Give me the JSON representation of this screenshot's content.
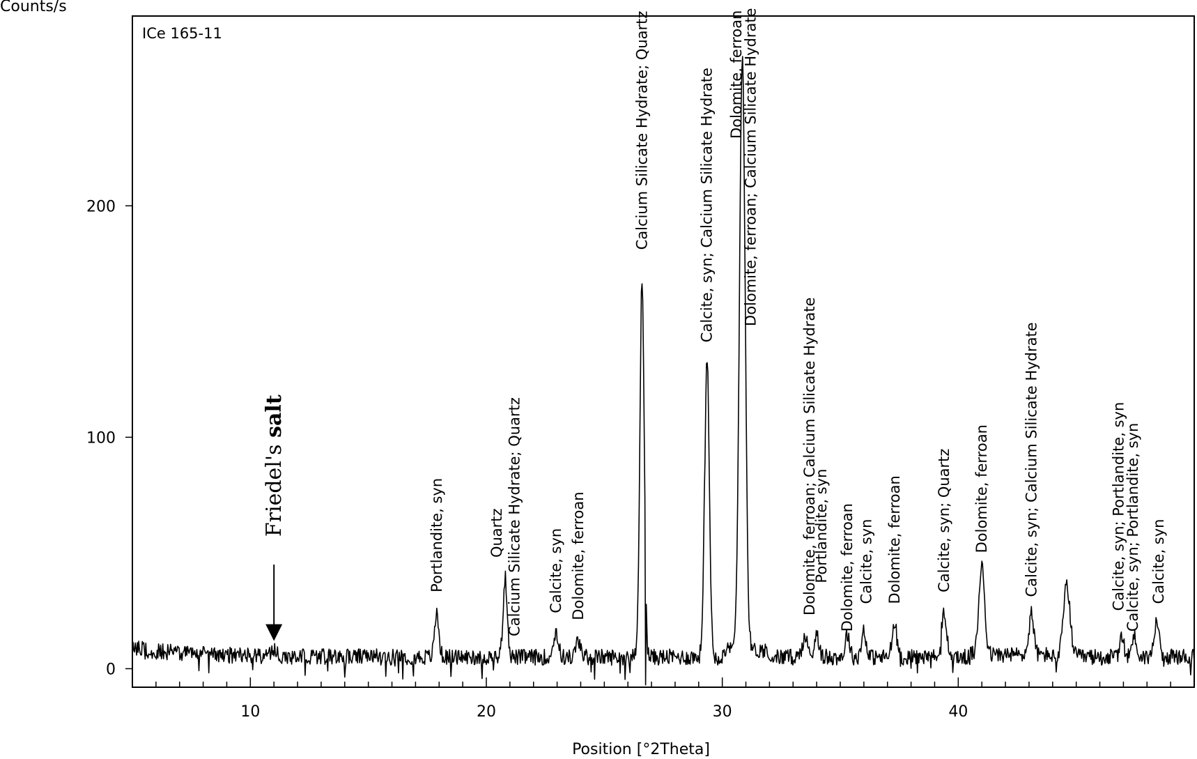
{
  "chart_data": {
    "type": "line",
    "ylabel": "Counts/s",
    "xlabel": "Position [°2Theta]",
    "sample_label": "ICe 165-11",
    "xlim": [
      5,
      50
    ],
    "ylim": [
      -8,
      282
    ],
    "x_ticks": [
      10,
      20,
      30,
      40
    ],
    "y_ticks": [
      0,
      100,
      200
    ],
    "x_tick_labels": [
      "10",
      "20",
      "30",
      "40"
    ],
    "y_tick_labels": [
      "0",
      "100",
      "200"
    ],
    "peaks": [
      {
        "x": 11.0,
        "y": 9,
        "w": 0.12
      },
      {
        "x": 17.9,
        "y": 25,
        "w": 0.09
      },
      {
        "x": 20.8,
        "y": 40,
        "w": 0.09
      },
      {
        "x": 22.95,
        "y": 17,
        "w": 0.1
      },
      {
        "x": 23.9,
        "y": 13,
        "w": 0.1
      },
      {
        "x": 26.6,
        "y": 170,
        "w": 0.09
      },
      {
        "x": 29.35,
        "y": 136,
        "w": 0.1
      },
      {
        "x": 30.85,
        "y": 264,
        "w": 0.12
      },
      {
        "x": 33.5,
        "y": 14,
        "w": 0.12
      },
      {
        "x": 34.0,
        "y": 17,
        "w": 0.09
      },
      {
        "x": 35.3,
        "y": 16,
        "w": 0.09
      },
      {
        "x": 36.0,
        "y": 18,
        "w": 0.09
      },
      {
        "x": 37.3,
        "y": 20,
        "w": 0.1
      },
      {
        "x": 39.4,
        "y": 24,
        "w": 0.12
      },
      {
        "x": 41.0,
        "y": 46,
        "w": 0.12
      },
      {
        "x": 43.1,
        "y": 24,
        "w": 0.1
      },
      {
        "x": 44.6,
        "y": 37,
        "w": 0.14
      },
      {
        "x": 46.95,
        "y": 14,
        "w": 0.1
      },
      {
        "x": 47.45,
        "y": 15,
        "w": 0.1
      },
      {
        "x": 48.4,
        "y": 22,
        "w": 0.1
      }
    ],
    "peak_labels": [
      {
        "x": 17.9,
        "y": 33,
        "text": "Portlandite, syn"
      },
      {
        "x": 20.45,
        "y": 48,
        "text": "Quartz"
      },
      {
        "x": 21.2,
        "y": 14,
        "text": "Calcium Silicate Hydrate; Quartz"
      },
      {
        "x": 22.95,
        "y": 24,
        "text": "Calcite, syn"
      },
      {
        "x": 23.9,
        "y": 21,
        "text": "Dolomite, ferroan"
      },
      {
        "x": 26.6,
        "y": 181,
        "text": "Calcium Silicate Hydrate; Quartz"
      },
      {
        "x": 29.35,
        "y": 141,
        "text": "Calcite, syn; Calcium Silicate Hydrate"
      },
      {
        "x": 30.6,
        "y": 229,
        "text": "Dolomite, ferroan"
      },
      {
        "x": 31.2,
        "y": 148,
        "text": "Dolomite, ferroan; Calcium Silicate Hydrate"
      },
      {
        "x": 33.7,
        "y": 23,
        "text": "Dolomite, ferroan; Calcium Silicate Hydrate"
      },
      {
        "x": 34.2,
        "y": 37,
        "text": "Portlandite, syn"
      },
      {
        "x": 35.3,
        "y": 16,
        "text": "Dolomite, ferroan"
      },
      {
        "x": 36.1,
        "y": 28,
        "text": "Calcite, syn"
      },
      {
        "x": 37.3,
        "y": 28,
        "text": "Dolomite, ferroan"
      },
      {
        "x": 39.4,
        "y": 33,
        "text": "Calcite, syn; Quartz"
      },
      {
        "x": 41.0,
        "y": 50,
        "text": "Dolomite, ferroan"
      },
      {
        "x": 43.1,
        "y": 31,
        "text": "Calcite, syn; Calcium Silicate Hydrate"
      },
      {
        "x": 46.8,
        "y": 25,
        "text": "Calcite, syn; Portlandite, syn"
      },
      {
        "x": 47.4,
        "y": 16,
        "text": "Calcite, syn; Portlandite, syn"
      },
      {
        "x": 48.5,
        "y": 28,
        "text": "Calcite, syn"
      }
    ],
    "annotation": {
      "text_normal": "Friedel's ",
      "text_bold": "salt",
      "x": 11.0,
      "arrow_from_y": 45,
      "arrow_to_y": 12
    }
  }
}
